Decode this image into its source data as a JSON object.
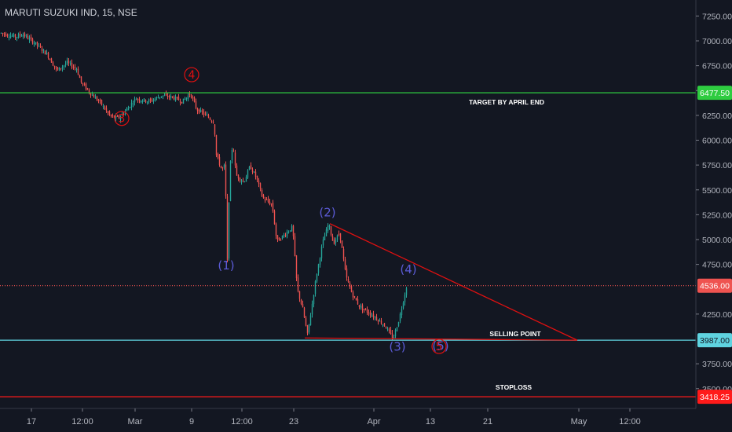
{
  "header": {
    "title": "MARUTI SUZUKI IND, 15, NSE"
  },
  "colors": {
    "background": "#131722",
    "up": "#26a69a",
    "down": "#ef5350",
    "target_line": "#2ecc40",
    "current_line": "#ef5350",
    "selling_line": "#5fd3e0",
    "stoploss_line": "#ff1a1a",
    "trend_line": "#e01010",
    "wave_blue": "#5b5bd6",
    "wave_red": "#e01010"
  },
  "chart_data": {
    "type": "candlestick",
    "title": "MARUTI SUZUKI IND, 15, NSE",
    "y_axis": {
      "ylim": [
        3418,
        7400
      ],
      "ticks": [
        7250,
        7000,
        6750,
        6500,
        6250,
        6000,
        5750,
        5500,
        5250,
        5000,
        4750,
        4250,
        3750,
        3500
      ],
      "tick_labels": [
        "7250.00",
        "7000.00",
        "6750.00",
        "6500.00",
        "6250.00",
        "6000.00",
        "5750.00",
        "5500.00",
        "5250.00",
        "5000.00",
        "4750.00",
        "4250.00",
        "3750.00",
        "3500.00"
      ]
    },
    "x_axis": {
      "range": [
        0,
        932
      ],
      "ticks": [
        {
          "label": "17",
          "x": 40
        },
        {
          "label": "12:00",
          "x": 105
        },
        {
          "label": "Mar",
          "x": 172
        },
        {
          "label": "9",
          "x": 244
        },
        {
          "label": "12:00",
          "x": 308
        },
        {
          "label": "23",
          "x": 374
        },
        {
          "label": "Apr",
          "x": 476
        },
        {
          "label": "13",
          "x": 548
        },
        {
          "label": "21",
          "x": 621
        },
        {
          "label": "May",
          "x": 737
        },
        {
          "label": "12:00",
          "x": 802
        }
      ]
    },
    "horizontal_levels": [
      {
        "name": "target",
        "value": 6477.5,
        "label": "6477.50",
        "annotation": "TARGET BY APRIL END",
        "style": "solid",
        "color_key": "target_line"
      },
      {
        "name": "current",
        "value": 4536.0,
        "label": "4536.00",
        "annotation": "",
        "style": "dotted",
        "color_key": "current_line"
      },
      {
        "name": "selling",
        "value": 3987.0,
        "label": "3987.00",
        "annotation": "SELLING POINT",
        "style": "solid",
        "color_key": "selling_line"
      },
      {
        "name": "stoploss",
        "value": 3418.25,
        "label": "3418.25",
        "annotation": "STOPLOSS",
        "style": "solid",
        "color_key": "stoploss_line"
      }
    ],
    "price_path": [
      [
        0,
        7080
      ],
      [
        20,
        7040
      ],
      [
        28,
        7070
      ],
      [
        45,
        6970
      ],
      [
        60,
        6860
      ],
      [
        72,
        6700
      ],
      [
        85,
        6780
      ],
      [
        97,
        6720
      ],
      [
        103,
        6580
      ],
      [
        115,
        6470
      ],
      [
        127,
        6380
      ],
      [
        140,
        6240
      ],
      [
        150,
        6220
      ],
      [
        160,
        6300
      ],
      [
        172,
        6420
      ],
      [
        190,
        6390
      ],
      [
        205,
        6450
      ],
      [
        220,
        6430
      ],
      [
        232,
        6390
      ],
      [
        242,
        6470
      ],
      [
        250,
        6310
      ],
      [
        262,
        6250
      ],
      [
        272,
        6180
      ],
      [
        275,
        5850
      ],
      [
        282,
        5700
      ],
      [
        286,
        5750
      ],
      [
        289,
        4780
      ],
      [
        292,
        5700
      ],
      [
        296,
        5980
      ],
      [
        300,
        5650
      ],
      [
        310,
        5580
      ],
      [
        318,
        5740
      ],
      [
        326,
        5620
      ],
      [
        334,
        5420
      ],
      [
        346,
        5350
      ],
      [
        352,
        4980
      ],
      [
        362,
        5050
      ],
      [
        372,
        5130
      ],
      [
        378,
        4500
      ],
      [
        385,
        4300
      ],
      [
        391,
        4040
      ],
      [
        396,
        4300
      ],
      [
        402,
        4620
      ],
      [
        410,
        4960
      ],
      [
        418,
        5160
      ],
      [
        424,
        4960
      ],
      [
        432,
        5070
      ],
      [
        440,
        4630
      ],
      [
        448,
        4450
      ],
      [
        458,
        4320
      ],
      [
        470,
        4260
      ],
      [
        480,
        4200
      ],
      [
        490,
        4130
      ],
      [
        500,
        4000
      ],
      [
        508,
        4210
      ],
      [
        514,
        4420
      ],
      [
        518,
        4560
      ]
    ],
    "trend_lines": [
      {
        "from": [
          420,
          5160
        ],
        "to": [
          735,
          3987
        ]
      },
      {
        "from": [
          388,
          4010
        ],
        "to": [
          735,
          3987
        ]
      }
    ],
    "wave_labels": [
      {
        "text": "(1)",
        "x": 288,
        "y": 4700,
        "color": "blue"
      },
      {
        "text": "(2)",
        "x": 417,
        "y": 5235,
        "color": "blue"
      },
      {
        "text": "(3)",
        "x": 506,
        "y": 3880,
        "color": "blue"
      },
      {
        "text": "(4)",
        "x": 520,
        "y": 4660,
        "color": "blue"
      },
      {
        "text": "(5)",
        "x": 561,
        "y": 3890,
        "color": "blue"
      },
      {
        "text": "3",
        "x": 155,
        "y": 6180,
        "color": "red-circle"
      },
      {
        "text": "4",
        "x": 244,
        "y": 6620,
        "color": "red-circle"
      },
      {
        "text": "5",
        "x": 559,
        "y": 3885,
        "color": "red-circle"
      }
    ]
  }
}
